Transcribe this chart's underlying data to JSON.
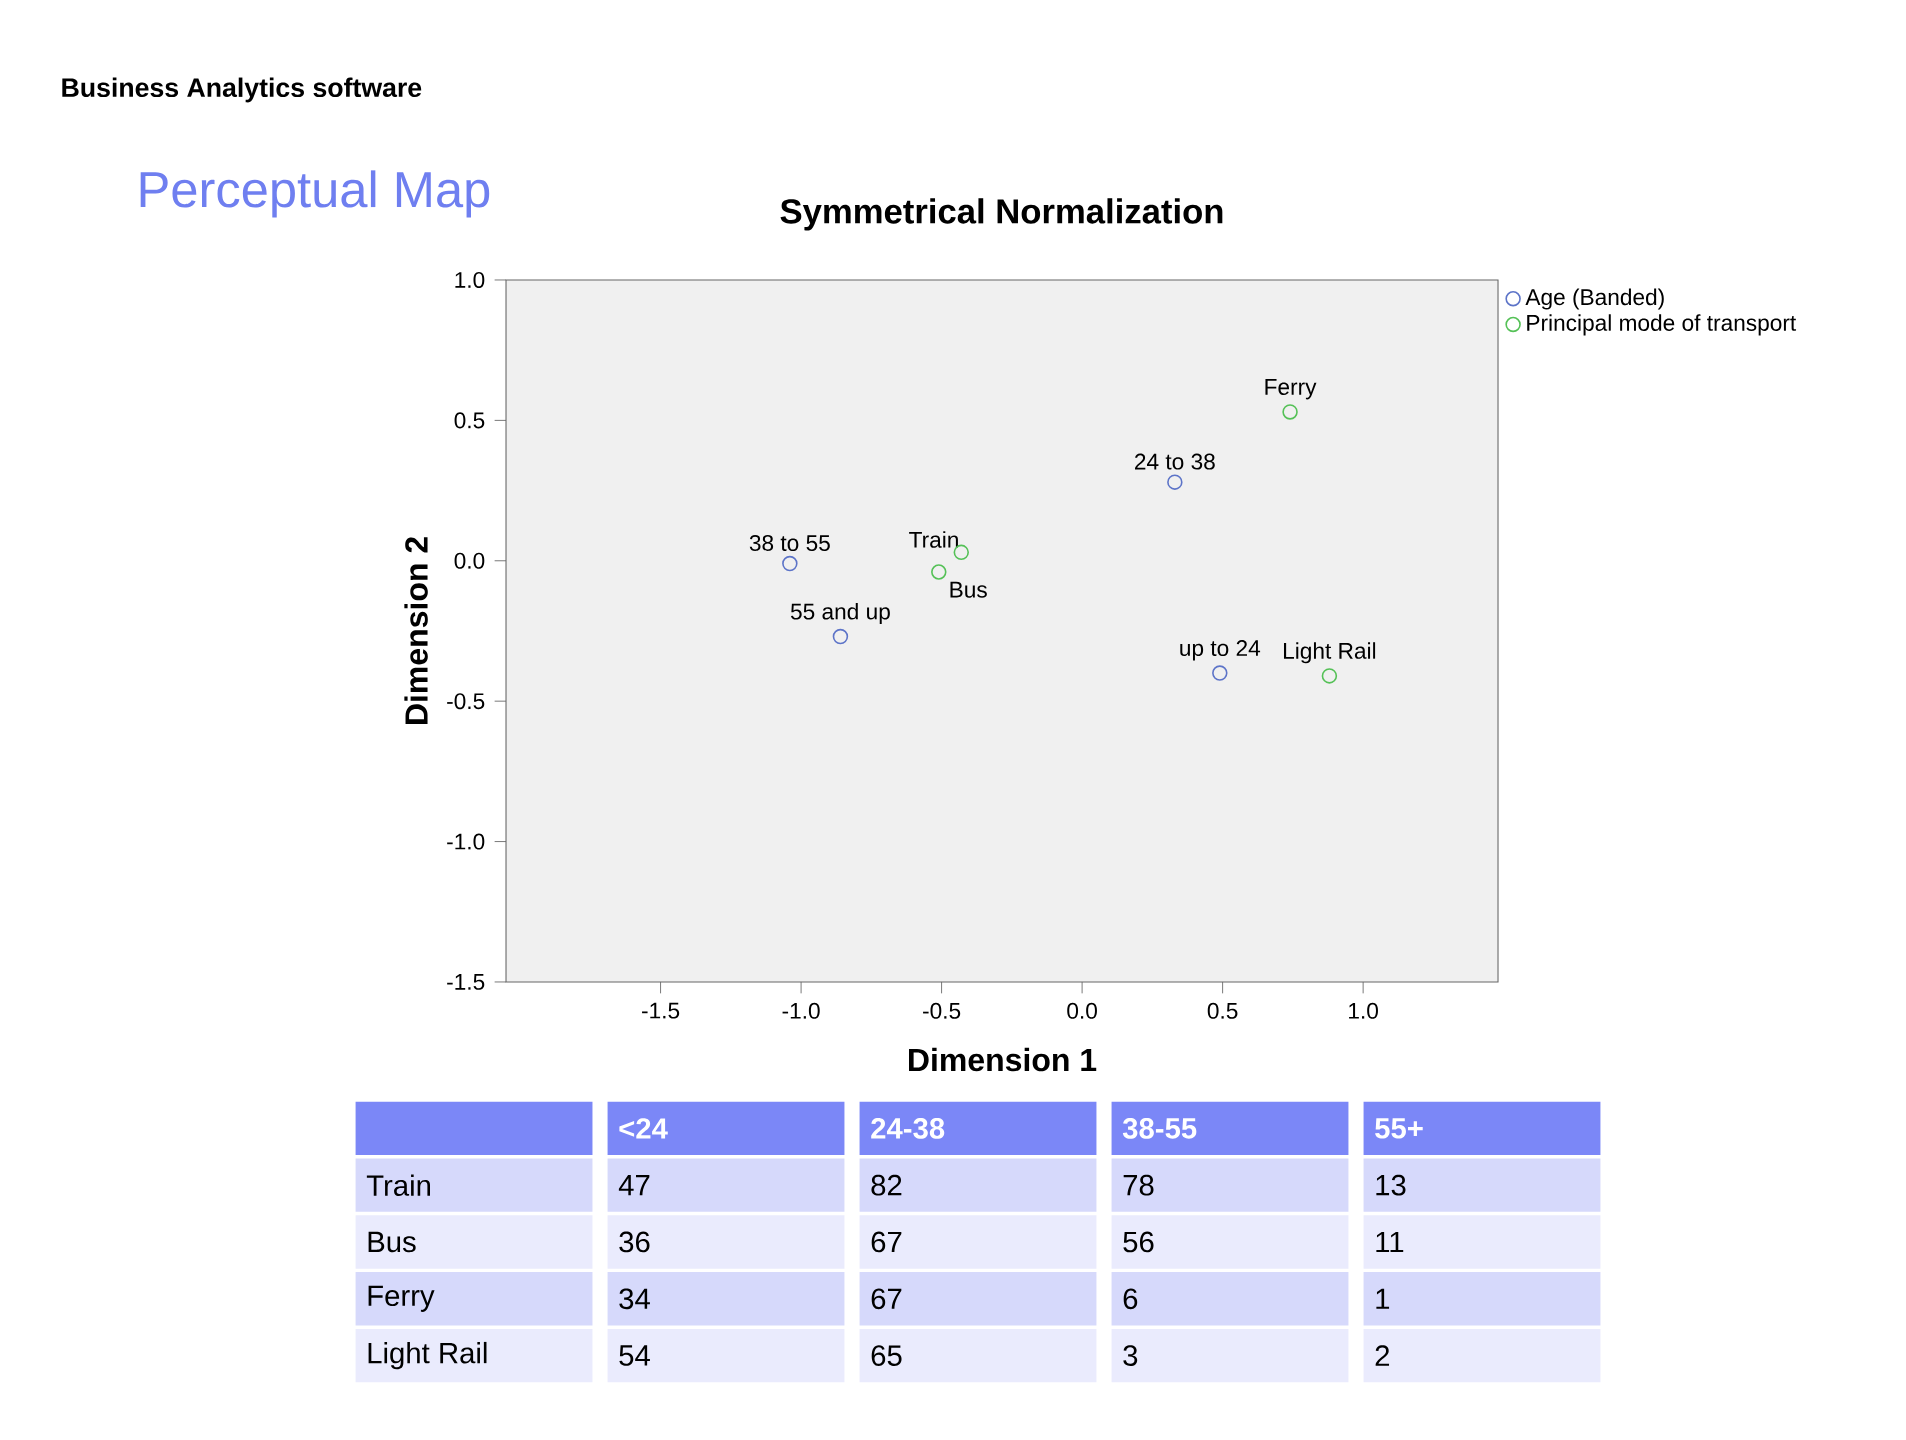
{
  "chart_data": [
    {
      "type": "scatter",
      "title": "Symmetrical Normalization",
      "xlabel": "Dimension 1",
      "ylabel": "Dimension 2",
      "xlim": [
        -2.05,
        1.48
      ],
      "ylim": [
        -1.5,
        1.0
      ],
      "xticks": [
        {
          "value": -1.5,
          "label": "-1.5"
        },
        {
          "value": -1.0,
          "label": "-1.0"
        },
        {
          "value": -0.5,
          "label": "-0.5"
        },
        {
          "value": 0,
          "label": "0.0"
        },
        {
          "value": 0.5,
          "label": "0.5"
        },
        {
          "value": 1.0,
          "label": "1.0"
        }
      ],
      "yticks": [
        {
          "value": -1.5,
          "label": "-1.5"
        },
        {
          "value": -1.0,
          "label": "-1.0"
        },
        {
          "value": -0.5,
          "label": "-0.5"
        },
        {
          "value": 0,
          "label": "0.0"
        },
        {
          "value": 0.5,
          "label": "0.5"
        },
        {
          "value": 1.0,
          "label": "1.0"
        }
      ],
      "legend": "top right",
      "marker": "circle",
      "series": [
        {
          "name": "Age (Banded)",
          "color": "#5d74c8",
          "x": [
            0.49,
            0.33,
            -1.04,
            -0.86
          ],
          "values": [
            -0.4,
            0.28,
            -0.01,
            -0.27
          ]
        },
        {
          "name": "Principal mode of transport",
          "color": "#55c157",
          "x": [
            -0.43,
            -0.51,
            0.74,
            0.88
          ],
          "values": [
            0.03,
            -0.04,
            0.53,
            -0.41
          ]
        }
      ],
      "annotations": [
        "Business Analytics software",
        "Perceptual Map",
        {
          "text": "up to 24",
          "x": 0.49,
          "y": -0.4
        },
        {
          "text": "24 to 38",
          "x": 0.33,
          "y": 0.28
        },
        {
          "text": "38 to 55",
          "x": -1.04,
          "y": -0.01
        },
        {
          "text": "55 and up",
          "x": -0.86,
          "y": -0.27
        },
        {
          "text": "Train",
          "x": -0.43,
          "y": 0.03
        },
        {
          "text": "Bus",
          "x": -0.51,
          "y": -0.04
        },
        {
          "text": "Ferry",
          "x": 0.74,
          "y": 0.53
        },
        {
          "text": "Light Rail",
          "x": 0.88,
          "y": -0.41
        }
      ]
    },
    {
      "type": "heatmap",
      "data_labels": true,
      "categories": [
        "<24",
        "24-38",
        "38-55",
        "55+"
      ],
      "y_categories": [
        "Train",
        "Bus",
        "Ferry",
        "Light Rail"
      ],
      "cells": [
        [
          47,
          82,
          78,
          13
        ],
        [
          36,
          67,
          56,
          11
        ],
        [
          34,
          67,
          6,
          1
        ],
        [
          54,
          65,
          3,
          2
        ]
      ]
    }
  ]
}
